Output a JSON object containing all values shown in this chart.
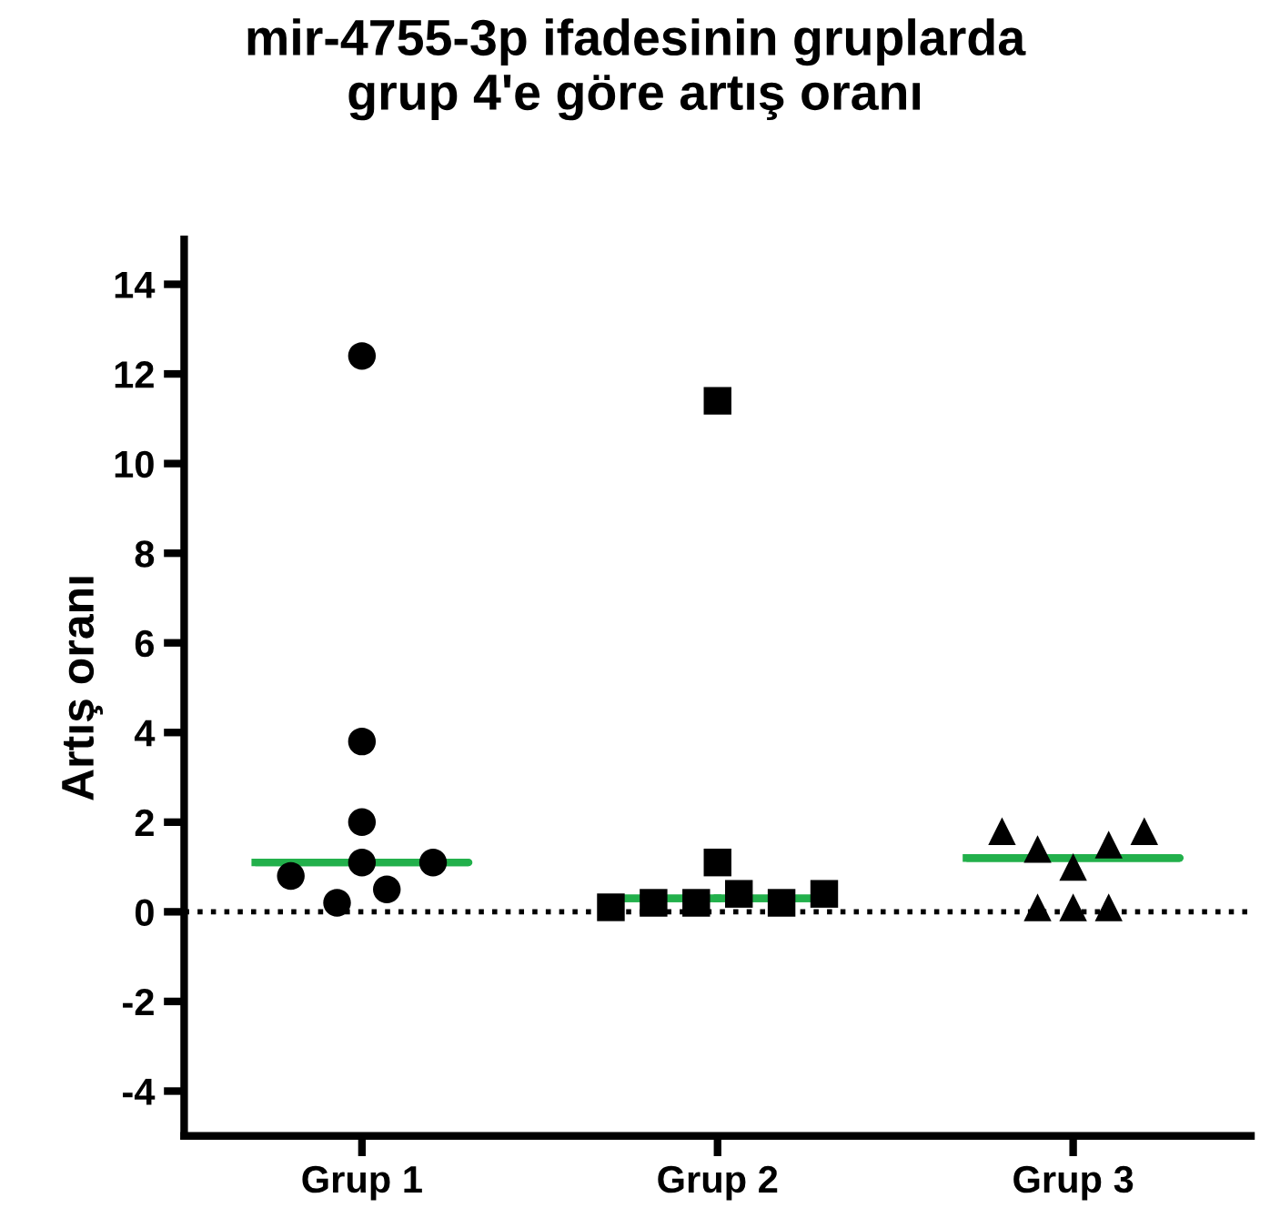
{
  "chart_data": {
    "type": "scatter",
    "title": "mir-4755-3p ifadesinin gruplarda\ngrup 4'e göre artış oranı",
    "ylabel": "Artış oranı",
    "categories": [
      "Grup 1",
      "Grup 2",
      "Grup 3"
    ],
    "series": [
      {
        "marker": "circle",
        "color": "#000000",
        "x": [
          "Grup 1",
          "Grup 1",
          "Grup 1",
          "Grup 1",
          "Grup 1",
          "Grup 1",
          "Grup 1",
          "Grup 1"
        ],
        "values": [
          12.4,
          3.8,
          2.0,
          1.1,
          1.1,
          0.8,
          0.5,
          0.2
        ]
      },
      {
        "marker": "square",
        "color": "#000000",
        "x": [
          "Grup 2",
          "Grup 2",
          "Grup 2",
          "Grup 2",
          "Grup 2",
          "Grup 2",
          "Grup 2",
          "Grup 2"
        ],
        "values": [
          11.4,
          1.1,
          0.1,
          0.2,
          0.2,
          0.4,
          0.2,
          0.4
        ]
      },
      {
        "marker": "triangle",
        "color": "#000000",
        "x": [
          "Grup 3",
          "Grup 3",
          "Grup 3",
          "Grup 3",
          "Grup 3",
          "Grup 3",
          "Grup 3",
          "Grup 3"
        ],
        "values": [
          1.8,
          1.4,
          1.0,
          1.5,
          1.8,
          0.1,
          0.1,
          0.1
        ]
      },
      {
        "type": "box",
        "color": "#22b04b",
        "boxes": [
          {
            "low": 1.1,
            "q1": 1.1,
            "median": 1.1,
            "q3": 1.1,
            "high": 1.1
          },
          {
            "low": 0.3,
            "q1": 0.3,
            "median": 0.3,
            "q3": 0.3,
            "high": 0.3
          },
          {
            "low": 1.2,
            "q1": 1.2,
            "median": 1.2,
            "q3": 1.2,
            "high": 1.2
          }
        ]
      }
    ],
    "ylim": [
      -5,
      15
    ],
    "yticks": [
      -4,
      -2,
      0,
      2,
      4,
      6,
      8,
      10,
      12,
      14
    ],
    "ref_lines": [
      {
        "axis": "y",
        "value": 0,
        "line_style": "dotted",
        "color": "#000000"
      }
    ],
    "grid": false,
    "legend": false
  }
}
